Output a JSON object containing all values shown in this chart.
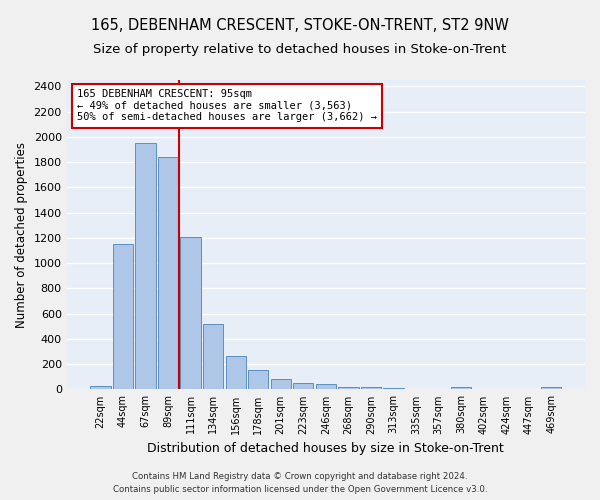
{
  "title1": "165, DEBENHAM CRESCENT, STOKE-ON-TRENT, ST2 9NW",
  "title2": "Size of property relative to detached houses in Stoke-on-Trent",
  "xlabel": "Distribution of detached houses by size in Stoke-on-Trent",
  "ylabel": "Number of detached properties",
  "categories": [
    "22sqm",
    "44sqm",
    "67sqm",
    "89sqm",
    "111sqm",
    "134sqm",
    "156sqm",
    "178sqm",
    "201sqm",
    "223sqm",
    "246sqm",
    "268sqm",
    "290sqm",
    "313sqm",
    "335sqm",
    "357sqm",
    "380sqm",
    "402sqm",
    "424sqm",
    "447sqm",
    "469sqm"
  ],
  "values": [
    28,
    1150,
    1950,
    1840,
    1210,
    515,
    265,
    155,
    80,
    50,
    42,
    20,
    18,
    10,
    0,
    0,
    18,
    0,
    0,
    0,
    18
  ],
  "bar_color": "#aec6e8",
  "bar_edge_color": "#5a8fc0",
  "vline_x": 3.5,
  "vline_color": "#cc0000",
  "annotation_line1": "165 DEBENHAM CRESCENT: 95sqm",
  "annotation_line2": "← 49% of detached houses are smaller (3,563)",
  "annotation_line3": "50% of semi-detached houses are larger (3,662) →",
  "annotation_box_color": "#cc0000",
  "annotation_fontsize": 7.5,
  "ylim": [
    0,
    2450
  ],
  "yticks": [
    0,
    200,
    400,
    600,
    800,
    1000,
    1200,
    1400,
    1600,
    1800,
    2000,
    2200,
    2400
  ],
  "footer1": "Contains HM Land Registry data © Crown copyright and database right 2024.",
  "footer2": "Contains public sector information licensed under the Open Government Licence v3.0.",
  "bg_color": "#e8eef7",
  "grid_color": "#ffffff",
  "title1_fontsize": 10.5,
  "title2_fontsize": 9.5,
  "ylabel_fontsize": 8.5,
  "xlabel_fontsize": 9
}
